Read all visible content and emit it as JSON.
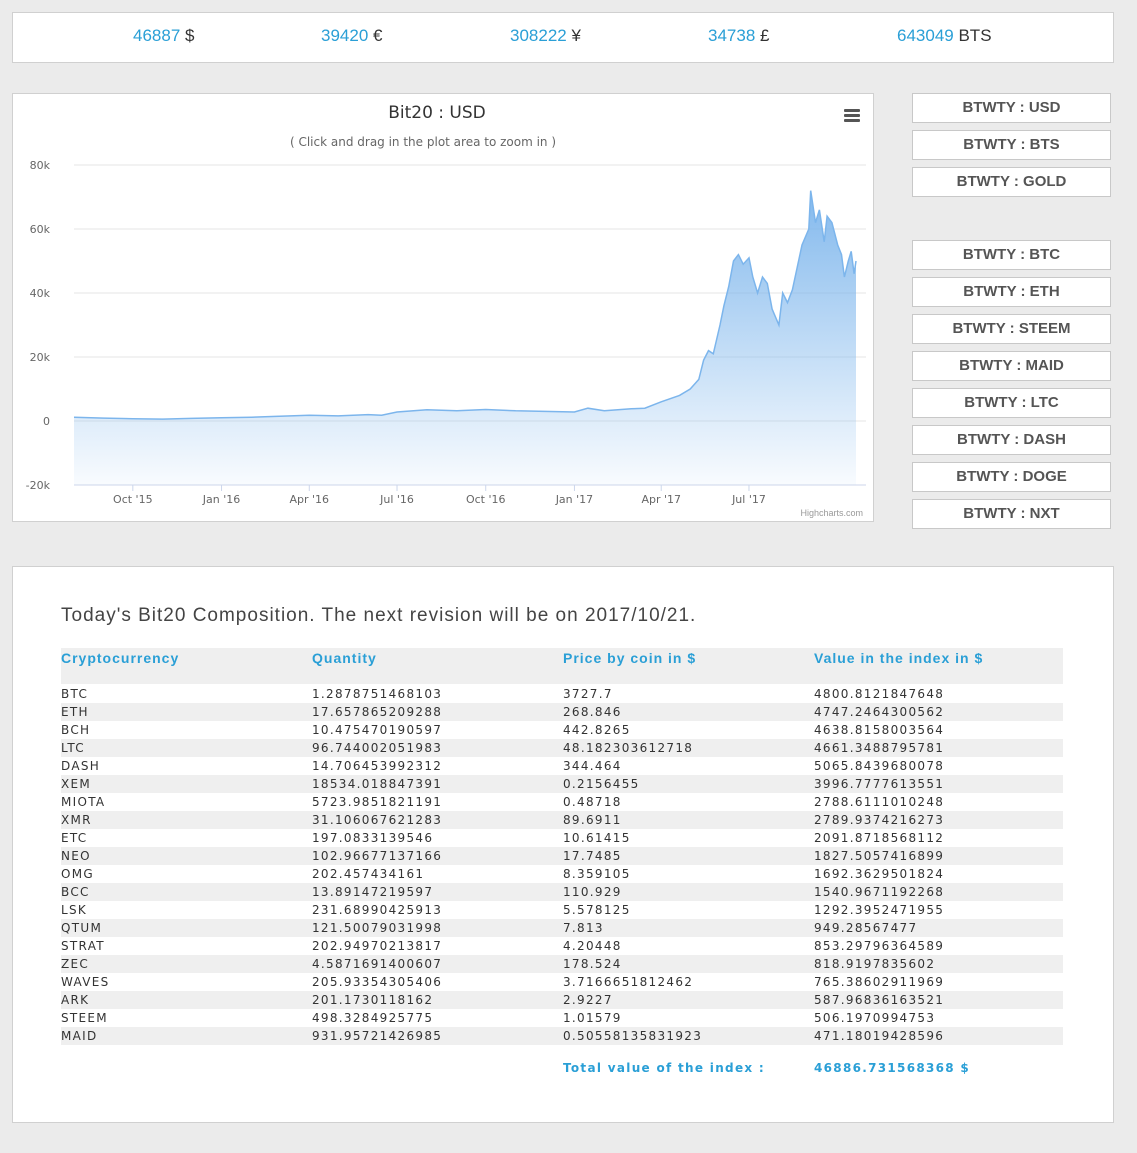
{
  "prices": [
    {
      "value": "46887",
      "unit": "$"
    },
    {
      "value": "39420",
      "unit": "€"
    },
    {
      "value": "308222",
      "unit": "¥"
    },
    {
      "value": "34738",
      "unit": "£"
    },
    {
      "value": "643049",
      "unit": "BTS"
    }
  ],
  "chart": {
    "title": "Bit20 : USD",
    "subtitle": "( Click and drag in the plot area to zoom in )",
    "credits": "Highcharts.com",
    "menu_icon": "hamburger-icon"
  },
  "chart_data": {
    "type": "area",
    "title": "Bit20 : USD",
    "subtitle": "( Click and drag in the plot area to zoom in )",
    "xlabel": "",
    "ylabel": "",
    "ylim": [
      -20000,
      80000
    ],
    "yticks": [
      {
        "value": -20000,
        "label": "-20k"
      },
      {
        "value": 0,
        "label": "0"
      },
      {
        "value": 20000,
        "label": "20k"
      },
      {
        "value": 40000,
        "label": "40k"
      },
      {
        "value": 60000,
        "label": "60k"
      },
      {
        "value": 80000,
        "label": "80k"
      }
    ],
    "xrange": [
      "2015-08-01",
      "2017-10-20"
    ],
    "xticks": [
      {
        "date": "2015-10-01",
        "label": "Oct '15"
      },
      {
        "date": "2016-01-01",
        "label": "Jan '16"
      },
      {
        "date": "2016-04-01",
        "label": "Apr '16"
      },
      {
        "date": "2016-07-01",
        "label": "Jul '16"
      },
      {
        "date": "2016-10-01",
        "label": "Oct '16"
      },
      {
        "date": "2017-01-01",
        "label": "Jan '17"
      },
      {
        "date": "2017-04-01",
        "label": "Apr '17"
      },
      {
        "date": "2017-07-01",
        "label": "Jul '17"
      }
    ],
    "grid": true,
    "color": "#7cb5ec",
    "series": [
      {
        "x": [
          "2015-08-01",
          "2015-09-01",
          "2015-10-01",
          "2015-11-01",
          "2015-12-01",
          "2016-01-01",
          "2016-02-01",
          "2016-03-01",
          "2016-04-01",
          "2016-05-01",
          "2016-06-01",
          "2016-06-15",
          "2016-07-01",
          "2016-08-01",
          "2016-09-01",
          "2016-10-01",
          "2016-11-01",
          "2016-12-01",
          "2017-01-01",
          "2017-01-15",
          "2017-02-01",
          "2017-03-01",
          "2017-03-15",
          "2017-04-01",
          "2017-04-20",
          "2017-05-01",
          "2017-05-10",
          "2017-05-15",
          "2017-05-20",
          "2017-05-25",
          "2017-06-01",
          "2017-06-05",
          "2017-06-10",
          "2017-06-15",
          "2017-06-20",
          "2017-06-25",
          "2017-07-01",
          "2017-07-05",
          "2017-07-10",
          "2017-07-15",
          "2017-07-20",
          "2017-07-25",
          "2017-08-01",
          "2017-08-05",
          "2017-08-10",
          "2017-08-15",
          "2017-08-20",
          "2017-08-25",
          "2017-09-01",
          "2017-09-03",
          "2017-09-08",
          "2017-09-12",
          "2017-09-15",
          "2017-09-17",
          "2017-09-20",
          "2017-09-25",
          "2017-10-01",
          "2017-10-05",
          "2017-10-08",
          "2017-10-12",
          "2017-10-15",
          "2017-10-18",
          "2017-10-20"
        ],
        "values": [
          1200,
          900,
          700,
          600,
          800,
          1000,
          1200,
          1500,
          1800,
          1600,
          2000,
          1800,
          2800,
          3500,
          3200,
          3600,
          3200,
          3000,
          2800,
          4000,
          3200,
          3800,
          4000,
          6000,
          8000,
          10000,
          13000,
          19000,
          22000,
          21000,
          30000,
          36000,
          42000,
          50000,
          52000,
          49000,
          51000,
          45000,
          40000,
          45000,
          43000,
          35000,
          30000,
          40000,
          37000,
          41000,
          48000,
          55000,
          60000,
          72000,
          62000,
          66000,
          60000,
          56000,
          64000,
          62000,
          55000,
          52000,
          45000,
          50000,
          53000,
          46000,
          50000
        ]
      }
    ]
  },
  "side_buttons_group1": [
    "BTWTY : USD",
    "BTWTY : BTS",
    "BTWTY : GOLD"
  ],
  "side_buttons_group2": [
    "BTWTY : BTC",
    "BTWTY : ETH",
    "BTWTY : STEEM",
    "BTWTY : MAID",
    "BTWTY : LTC",
    "BTWTY : DASH",
    "BTWTY : DOGE",
    "BTWTY : NXT"
  ],
  "composition": {
    "title": "Today's Bit20 Composition. The next revision will be on 2017/10/21.",
    "headers": [
      "Cryptocurrency",
      "Quantity",
      "Price by coin in $",
      "Value in the index in $"
    ],
    "rows": [
      [
        "BTC",
        "1.2878751468103",
        "3727.7",
        "4800.8121847648"
      ],
      [
        "ETH",
        "17.657865209288",
        "268.846",
        "4747.2464300562"
      ],
      [
        "BCH",
        "10.475470190597",
        "442.8265",
        "4638.8158003564"
      ],
      [
        "LTC",
        "96.744002051983",
        "48.182303612718",
        "4661.3488795781"
      ],
      [
        "DASH",
        "14.706453992312",
        "344.464",
        "5065.8439680078"
      ],
      [
        "XEM",
        "18534.018847391",
        "0.2156455",
        "3996.7777613551"
      ],
      [
        "MIOTA",
        "5723.9851821191",
        "0.48718",
        "2788.6111010248"
      ],
      [
        "XMR",
        "31.106067621283",
        "89.6911",
        "2789.9374216273"
      ],
      [
        "ETC",
        "197.0833139546",
        "10.61415",
        "2091.8718568112"
      ],
      [
        "NEO",
        "102.96677137166",
        "17.7485",
        "1827.5057416899"
      ],
      [
        "OMG",
        "202.457434161",
        "8.359105",
        "1692.3629501824"
      ],
      [
        "BCC",
        "13.89147219597",
        "110.929",
        "1540.9671192268"
      ],
      [
        "LSK",
        "231.68990425913",
        "5.578125",
        "1292.3952471955"
      ],
      [
        "QTUM",
        "121.50079031998",
        "7.813",
        "949.28567477"
      ],
      [
        "STRAT",
        "202.94970213817",
        "4.20448",
        "853.29796364589"
      ],
      [
        "ZEC",
        "4.5871691400607",
        "178.524",
        "818.9197835602"
      ],
      [
        "WAVES",
        "205.93354305406",
        "3.7166651812462",
        "765.38602911969"
      ],
      [
        "ARK",
        "201.1730118162",
        "2.9227",
        "587.96836163521"
      ],
      [
        "STEEM",
        "498.3284925775",
        "1.01579",
        "506.1970994753"
      ],
      [
        "MAID",
        "931.95721426985",
        "0.50558135831923",
        "471.18019428596"
      ]
    ],
    "total_label": "Total value of the index :",
    "total_value": "46886.731568368 $"
  }
}
